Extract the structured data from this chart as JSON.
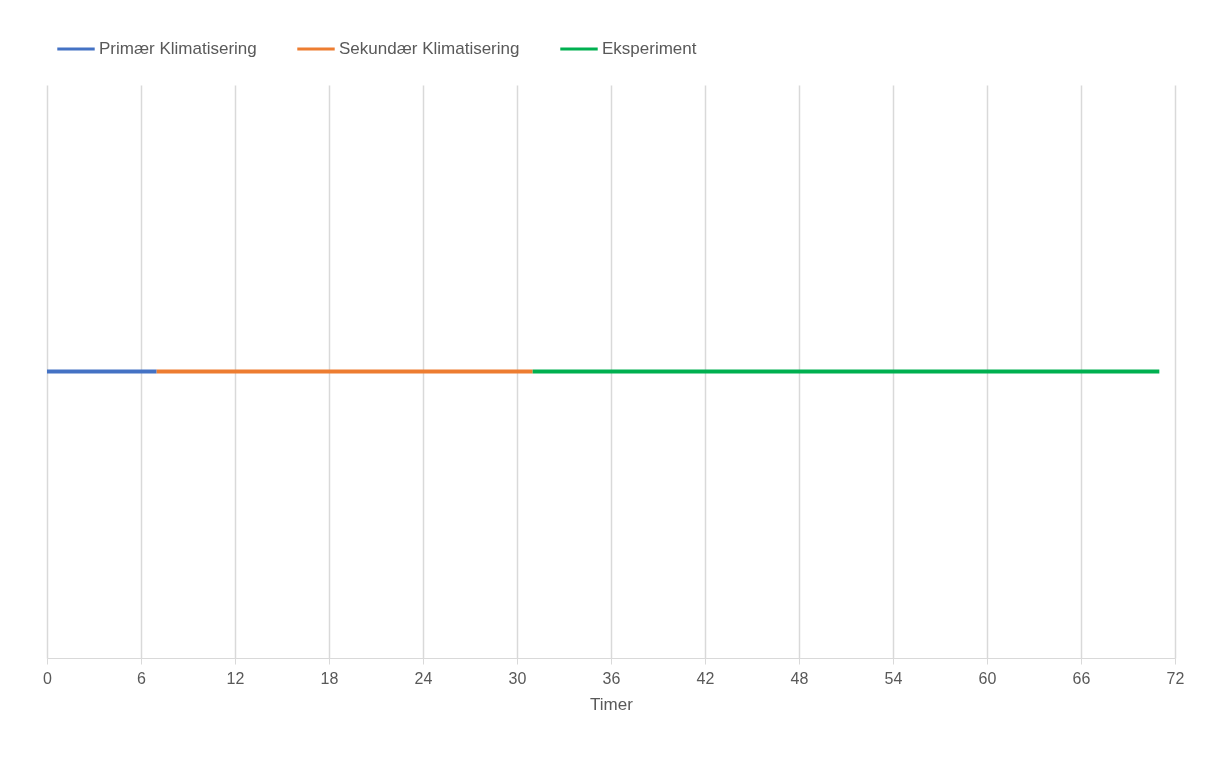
{
  "chart_data": {
    "type": "bar",
    "orientation": "horizontal",
    "stacked": true,
    "xlabel": "Timer",
    "categories": [
      null
    ],
    "xlim": [
      0,
      72
    ],
    "xticks": [
      0,
      6,
      12,
      18,
      24,
      30,
      36,
      42,
      48,
      54,
      60,
      66,
      72
    ],
    "grid": "x",
    "legend": "top",
    "series": [
      {
        "name": "Primær Klimatisering",
        "color": "#4472c4",
        "values": [
          7
        ]
      },
      {
        "name": "Sekundær Klimatisering",
        "color": "#ed7d31",
        "values": [
          24
        ]
      },
      {
        "name": "Eksperiment",
        "color": "#00b050",
        "values": [
          40
        ]
      }
    ]
  }
}
